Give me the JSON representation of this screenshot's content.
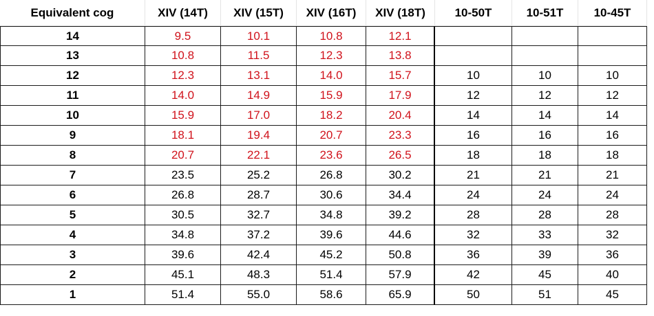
{
  "headers": [
    "Equivalent cog",
    "XIV (14T)",
    "XIV (15T)",
    "XIV (16T)",
    "XIV (18T)",
    "10-50T",
    "10-51T",
    "10-45T"
  ],
  "colors": {
    "red_value": "#d0121b",
    "black_value": "#000000"
  },
  "rows": [
    {
      "cog": "14",
      "xiv": [
        "9.5",
        "10.1",
        "10.8",
        "12.1"
      ],
      "red": true,
      "cass": [
        "",
        "",
        ""
      ]
    },
    {
      "cog": "13",
      "xiv": [
        "10.8",
        "11.5",
        "12.3",
        "13.8"
      ],
      "red": true,
      "cass": [
        "",
        "",
        ""
      ]
    },
    {
      "cog": "12",
      "xiv": [
        "12.3",
        "13.1",
        "14.0",
        "15.7"
      ],
      "red": true,
      "cass": [
        "10",
        "10",
        "10"
      ]
    },
    {
      "cog": "11",
      "xiv": [
        "14.0",
        "14.9",
        "15.9",
        "17.9"
      ],
      "red": true,
      "cass": [
        "12",
        "12",
        "12"
      ]
    },
    {
      "cog": "10",
      "xiv": [
        "15.9",
        "17.0",
        "18.2",
        "20.4"
      ],
      "red": true,
      "cass": [
        "14",
        "14",
        "14"
      ]
    },
    {
      "cog": "9",
      "xiv": [
        "18.1",
        "19.4",
        "20.7",
        "23.3"
      ],
      "red": true,
      "cass": [
        "16",
        "16",
        "16"
      ]
    },
    {
      "cog": "8",
      "xiv": [
        "20.7",
        "22.1",
        "23.6",
        "26.5"
      ],
      "red": true,
      "cass": [
        "18",
        "18",
        "18"
      ]
    },
    {
      "cog": "7",
      "xiv": [
        "23.5",
        "25.2",
        "26.8",
        "30.2"
      ],
      "red": false,
      "cass": [
        "21",
        "21",
        "21"
      ]
    },
    {
      "cog": "6",
      "xiv": [
        "26.8",
        "28.7",
        "30.6",
        "34.4"
      ],
      "red": false,
      "cass": [
        "24",
        "24",
        "24"
      ]
    },
    {
      "cog": "5",
      "xiv": [
        "30.5",
        "32.7",
        "34.8",
        "39.2"
      ],
      "red": false,
      "cass": [
        "28",
        "28",
        "28"
      ]
    },
    {
      "cog": "4",
      "xiv": [
        "34.8",
        "37.2",
        "39.6",
        "44.6"
      ],
      "red": false,
      "cass": [
        "32",
        "33",
        "32"
      ]
    },
    {
      "cog": "3",
      "xiv": [
        "39.6",
        "42.4",
        "45.2",
        "50.8"
      ],
      "red": false,
      "cass": [
        "36",
        "39",
        "36"
      ]
    },
    {
      "cog": "2",
      "xiv": [
        "45.1",
        "48.3",
        "51.4",
        "57.9"
      ],
      "red": false,
      "cass": [
        "42",
        "45",
        "40"
      ]
    },
    {
      "cog": "1",
      "xiv": [
        "51.4",
        "55.0",
        "58.6",
        "65.9"
      ],
      "red": false,
      "cass": [
        "50",
        "51",
        "45"
      ]
    }
  ]
}
